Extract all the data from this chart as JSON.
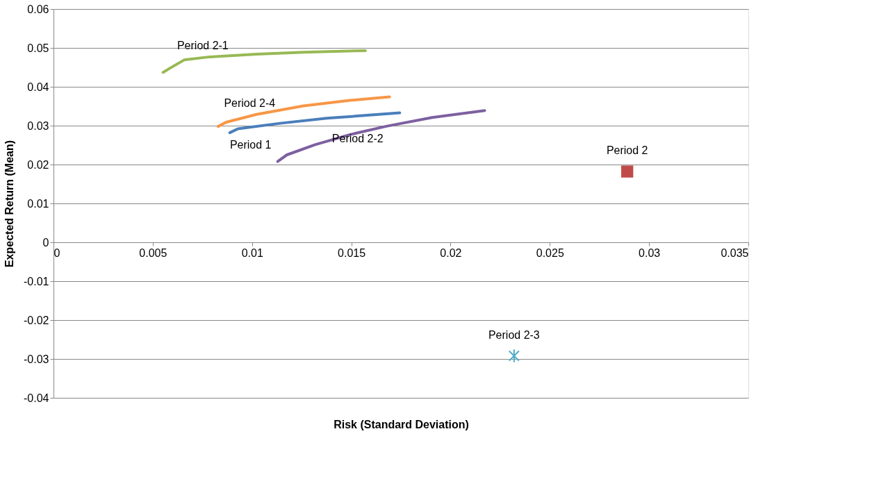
{
  "chart_data": {
    "type": "line",
    "xlabel": "Risk (Standard Deviation)",
    "ylabel": "Expected Return (Mean)",
    "xlim": [
      0,
      0.035
    ],
    "xticks": [
      0,
      0.005,
      0.01,
      0.015,
      0.02,
      0.025,
      0.03,
      0.035
    ],
    "ylim": [
      -0.04,
      0.06
    ],
    "yticks": [
      -0.04,
      -0.03,
      -0.02,
      -0.01,
      0,
      0.01,
      0.02,
      0.03,
      0.04,
      0.05,
      0.06
    ],
    "grid": "y",
    "legend": false,
    "line_style": "solid",
    "series": [
      {
        "name": "Period 1",
        "marker": "none",
        "color": "#4a7ebb",
        "x": [
          0.00888,
          0.00929,
          0.01141,
          0.01377,
          0.01744
        ],
        "values": [
          0.0282,
          0.0292,
          0.0306,
          0.0319,
          0.0333
        ]
      },
      {
        "name": "Period 2",
        "type": "scatter",
        "marker": "square",
        "color": "#be4b48",
        "x": [
          0.0289
        ],
        "values": [
          0.0182
        ]
      },
      {
        "name": "Period  2-1",
        "marker": "none",
        "color": "#98b954",
        "x": [
          0.00552,
          0.00587,
          0.00658,
          0.00787,
          0.01023,
          0.01259,
          0.01571
        ],
        "values": [
          0.0437,
          0.0448,
          0.0469,
          0.0477,
          0.0484,
          0.0489,
          0.0493
        ]
      },
      {
        "name": "Period 2-2",
        "marker": "none",
        "color": "#7d60a0",
        "x": [
          0.01129,
          0.01176,
          0.01318,
          0.01494,
          0.01672,
          0.01907,
          0.02172
        ],
        "values": [
          0.0208,
          0.0225,
          0.0251,
          0.0277,
          0.0298,
          0.0321,
          0.0339
        ]
      },
      {
        "name": "Period 2-3",
        "type": "scatter",
        "marker": "cross",
        "color": "#4bacc6",
        "x": [
          0.0232
        ],
        "values": [
          -0.0292
        ]
      },
      {
        "name": "Period 2-4",
        "marker": "none",
        "color": "#f79646",
        "x": [
          0.00829,
          0.0087,
          0.01023,
          0.01259,
          0.01494,
          0.01693
        ],
        "values": [
          0.0298,
          0.0309,
          0.0329,
          0.0351,
          0.0365,
          0.0374
        ]
      }
    ]
  }
}
